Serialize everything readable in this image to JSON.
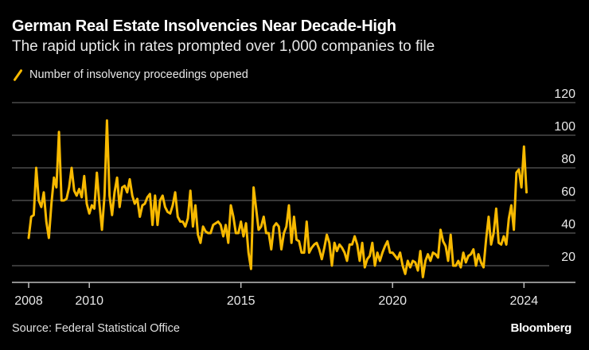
{
  "header": {
    "title": "German Real Estate Insolvencies Near Decade-High",
    "subtitle": "The rapid uptick in rates prompted over 1,000 companies to file"
  },
  "footer": {
    "source": "Source: Federal Statistical Office",
    "brand": "Bloomberg"
  },
  "colors": {
    "series": "#f7b900",
    "background": "#000000",
    "grid": "#4a4a4a"
  },
  "chart_data": {
    "type": "line",
    "title": "German Real Estate Insolvencies Near Decade-High",
    "subtitle": "The rapid uptick in rates prompted over 1,000 companies to file",
    "xlabel": "",
    "ylabel": "",
    "frequency": "monthly",
    "start": "2008-01",
    "xticks": [
      {
        "label": "2008",
        "date": "2008-01"
      },
      {
        "label": "2010",
        "date": "2010-01"
      },
      {
        "label": "2015",
        "date": "2015-01"
      },
      {
        "label": "2020",
        "date": "2020-01"
      },
      {
        "label": "2024",
        "date": "2024-05"
      }
    ],
    "yticks": [
      "20",
      "40",
      "60",
      "80",
      "100",
      "120"
    ],
    "ytick_values": [
      20,
      40,
      60,
      80,
      100,
      120
    ],
    "ylim": [
      10,
      120
    ],
    "grid": true,
    "legend_position": "top-left",
    "series": [
      {
        "name": "Number of insolvency proceedings opened",
        "values": [
          37,
          50,
          51,
          80,
          60,
          56,
          65,
          47,
          37,
          58,
          74,
          68,
          102,
          60,
          60,
          61,
          68,
          80,
          66,
          63,
          67,
          62,
          75,
          58,
          52,
          57,
          55,
          77,
          58,
          42,
          63,
          109,
          63,
          51,
          65,
          74,
          56,
          68,
          69,
          65,
          73,
          63,
          58,
          61,
          50,
          57,
          58,
          62,
          64,
          45,
          63,
          45,
          60,
          63,
          56,
          53,
          52,
          57,
          65,
          50,
          47,
          47,
          44,
          49,
          66,
          44,
          57,
          39,
          34,
          44,
          41,
          40,
          40,
          45,
          46,
          47,
          45,
          38,
          45,
          34,
          57,
          50,
          40,
          40,
          47,
          38,
          46,
          28,
          18,
          68,
          55,
          42,
          44,
          50,
          40,
          40,
          30,
          44,
          46,
          44,
          30,
          40,
          44,
          57,
          34,
          50,
          36,
          35,
          28,
          28,
          47,
          28,
          31,
          33,
          34,
          30,
          24,
          31,
          39,
          34,
          20,
          34,
          29,
          33,
          31,
          28,
          23,
          33,
          33,
          38,
          33,
          23,
          34,
          19,
          24,
          26,
          34,
          20,
          28,
          23,
          28,
          32,
          35,
          28,
          28,
          26,
          24,
          28,
          20,
          15,
          23,
          19,
          23,
          22,
          17,
          29,
          13,
          23,
          27,
          23,
          28,
          27,
          25,
          42,
          35,
          32,
          23,
          39,
          20,
          20,
          23,
          19,
          28,
          22,
          26,
          27,
          30,
          20,
          27,
          22,
          19,
          36,
          50,
          33,
          40,
          55,
          34,
          33,
          38,
          33,
          49,
          57,
          42,
          77,
          79,
          68,
          93,
          65
        ]
      }
    ]
  }
}
